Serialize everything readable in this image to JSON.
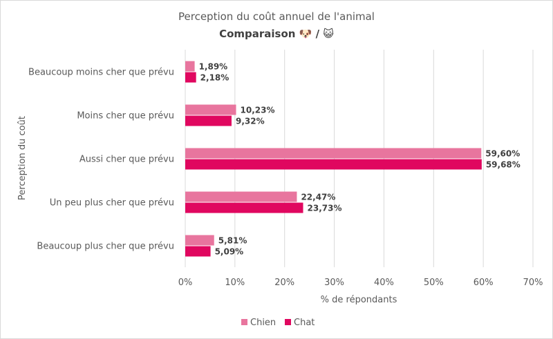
{
  "chart_data": {
    "type": "bar",
    "orientation": "horizontal",
    "title": "Perception du coût annuel de l'animal",
    "subtitle": "Comparaison 🐶 / 😺",
    "xlabel": "% de répondants",
    "ylabel": "Perception du coût",
    "xlim": [
      0,
      70
    ],
    "x_ticks": [
      "0%",
      "10%",
      "20%",
      "30%",
      "40%",
      "50%",
      "60%",
      "70%"
    ],
    "grid": true,
    "legend_position": "bottom",
    "categories": [
      "Beaucoup moins cher que prévu",
      "Moins cher que prévu",
      "Aussi cher que prévu",
      "Un peu plus cher que prévu",
      "Beaucoup plus cher que prévu"
    ],
    "series": [
      {
        "name": "Chien",
        "color": "#E8759E",
        "values": [
          1.89,
          10.23,
          59.6,
          22.47,
          5.81
        ],
        "labels": [
          "1,89%",
          "10,23%",
          "59,60%",
          "22,47%",
          "5,81%"
        ]
      },
      {
        "name": "Chat",
        "color": "#E0075F",
        "values": [
          2.18,
          9.32,
          59.68,
          23.73,
          5.09
        ],
        "labels": [
          "2,18%",
          "9,32%",
          "59,68%",
          "23,73%",
          "5,09%"
        ]
      }
    ]
  }
}
